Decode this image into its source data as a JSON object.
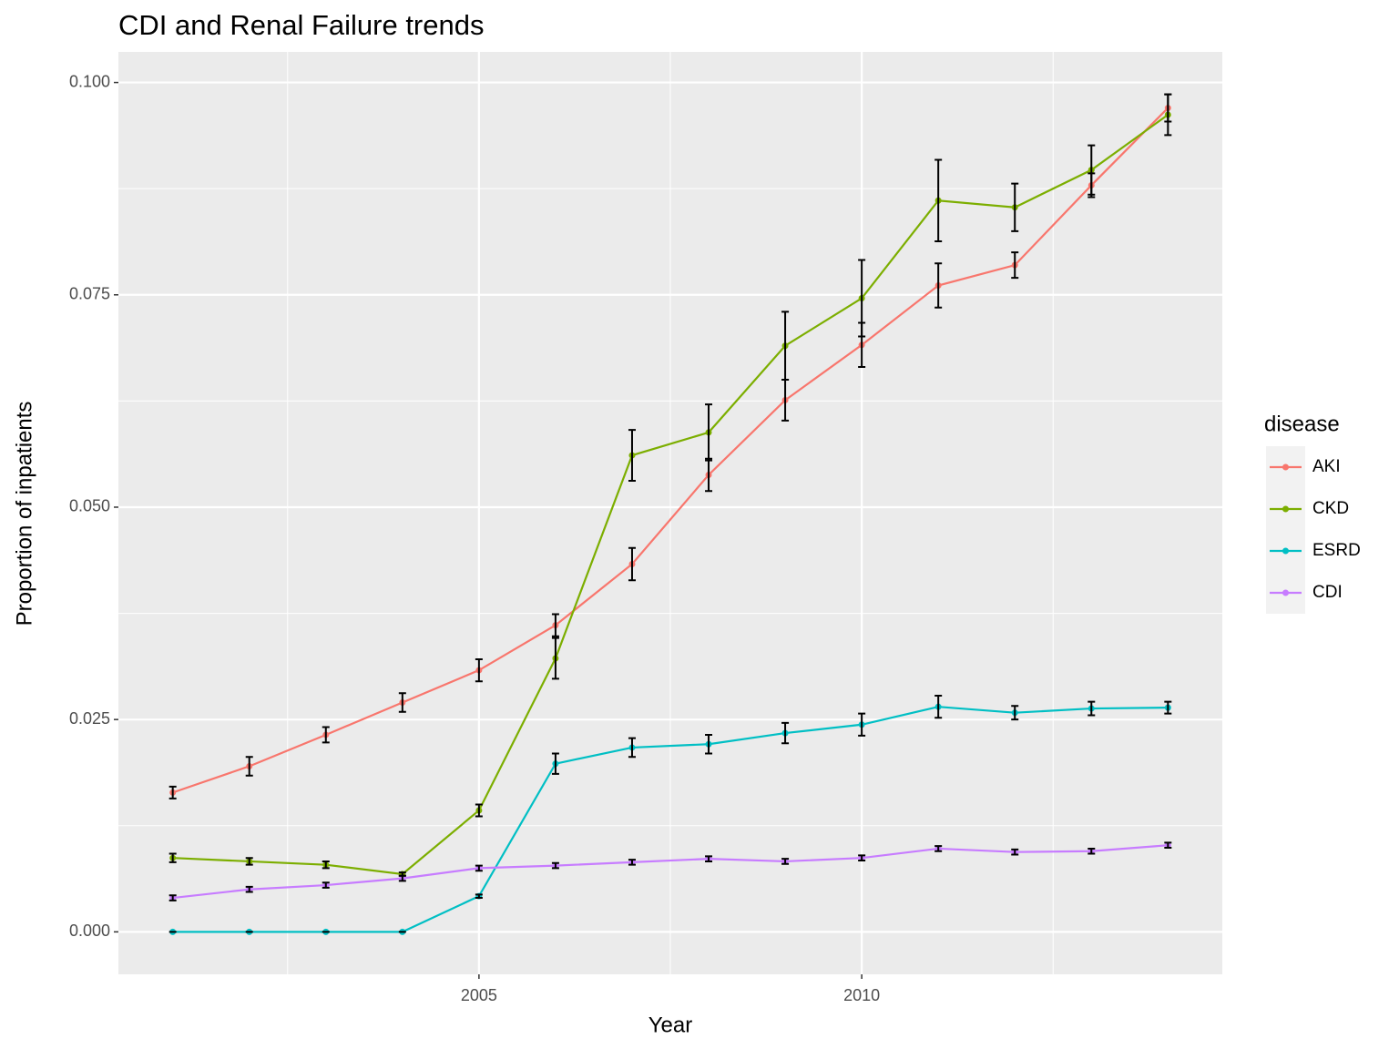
{
  "chart_data": {
    "type": "line",
    "title": "CDI and Renal Failure trends",
    "x_label": "Year",
    "y_label": "Proportion of inpatients",
    "legend_title": "disease",
    "legend_position": "right",
    "grid": true,
    "x": [
      2001,
      2002,
      2003,
      2004,
      2005,
      2006,
      2007,
      2008,
      2009,
      2010,
      2011,
      2012,
      2013,
      2014
    ],
    "xlim": [
      2000.29,
      2014.71
    ],
    "xticks": [
      2005,
      2010
    ],
    "ylim": [
      -0.005,
      0.1036
    ],
    "yticks": [
      {
        "value": 0,
        "label": "0.000"
      },
      {
        "value": 0.025,
        "label": "0.025"
      },
      {
        "value": 0.05,
        "label": "0.050"
      },
      {
        "value": 0.075,
        "label": "0.075"
      },
      {
        "value": 0.1,
        "label": "0.100"
      }
    ],
    "series": [
      {
        "name": "AKI",
        "color": "#f8766d",
        "values": [
          0.0164,
          0.0195,
          0.0232,
          0.027,
          0.0308,
          0.0361,
          0.0433,
          0.0538,
          0.0626,
          0.0691,
          0.0761,
          0.0785,
          0.0879,
          0.097
        ],
        "errors": [
          0.0007,
          0.0011,
          0.0009,
          0.0011,
          0.0013,
          0.0013,
          0.0019,
          0.0019,
          0.0024,
          0.0026,
          0.0026,
          0.0015,
          0.0014,
          0.0016
        ]
      },
      {
        "name": "CKD",
        "color": "#7cae00",
        "values": [
          0.0087,
          0.0083,
          0.0079,
          0.0068,
          0.0143,
          0.0322,
          0.0561,
          0.0588,
          0.069,
          0.0746,
          0.0861,
          0.0853,
          0.0897,
          0.0962
        ],
        "errors": [
          0.0005,
          0.0004,
          0.0004,
          0.0002,
          0.0007,
          0.0024,
          0.003,
          0.0033,
          0.004,
          0.0045,
          0.0048,
          0.0028,
          0.0029,
          0.0024
        ]
      },
      {
        "name": "ESRD",
        "color": "#00bfc4",
        "values": [
          0,
          0,
          0,
          0,
          0.0042,
          0.0198,
          0.0217,
          0.0221,
          0.0234,
          0.0244,
          0.0265,
          0.0258,
          0.0263,
          0.0264
        ],
        "errors": [
          0,
          0,
          0,
          0,
          0.0002,
          0.0012,
          0.0011,
          0.0011,
          0.0012,
          0.0013,
          0.0013,
          0.0008,
          0.0008,
          0.0007
        ]
      },
      {
        "name": "CDI",
        "color": "#c77cff",
        "values": [
          0.004,
          0.005,
          0.0055,
          0.0063,
          0.0075,
          0.0078,
          0.0082,
          0.0086,
          0.0083,
          0.0087,
          0.0098,
          0.0094,
          0.0095,
          0.0102
        ],
        "errors": [
          0.0003,
          0.0003,
          0.0003,
          0.0003,
          0.0003,
          0.0003,
          0.0003,
          0.0003,
          0.0003,
          0.0003,
          0.0003,
          0.0003,
          0.0003,
          0.0003
        ]
      }
    ]
  }
}
